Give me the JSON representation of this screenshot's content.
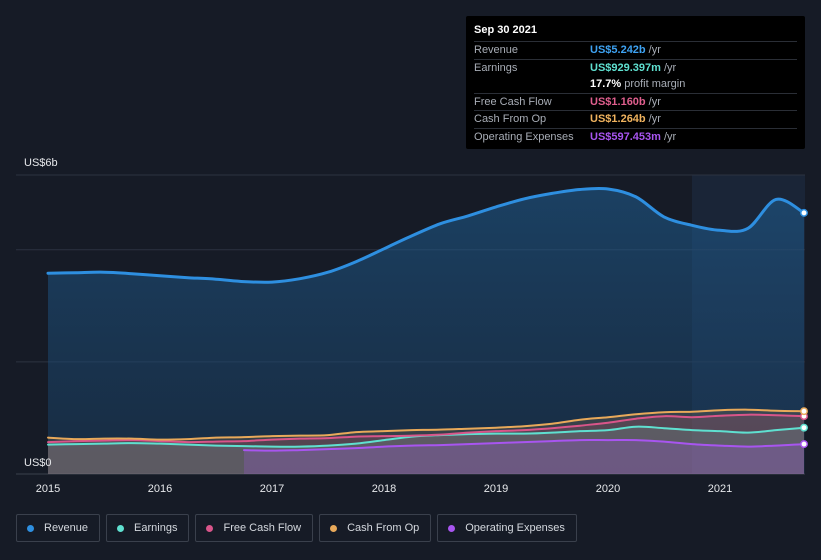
{
  "tooltip": {
    "date": "Sep 30 2021",
    "rows": [
      {
        "label": "Revenue",
        "value": "US$5.242b",
        "unit": "/yr",
        "color": "#3ea2f2"
      },
      {
        "label": "Earnings",
        "value": "US$929.397m",
        "unit": "/yr",
        "color": "#5fe0d0"
      },
      {
        "label": "",
        "value": "17.7%",
        "unit": "profit margin",
        "color": "#ffffff"
      },
      {
        "label": "Free Cash Flow",
        "value": "US$1.160b",
        "unit": "/yr",
        "color": "#e05f8e"
      },
      {
        "label": "Cash From Op",
        "value": "US$1.264b",
        "unit": "/yr",
        "color": "#f0b35e"
      },
      {
        "label": "Operating Expenses",
        "value": "US$597.453m",
        "unit": "/yr",
        "color": "#a855f0"
      }
    ]
  },
  "legend": [
    {
      "label": "Revenue",
      "color": "#2e8fe0"
    },
    {
      "label": "Earnings",
      "color": "#5fe0d0"
    },
    {
      "label": "Free Cash Flow",
      "color": "#d9558a"
    },
    {
      "label": "Cash From Op",
      "color": "#e8a95a"
    },
    {
      "label": "Operating Expenses",
      "color": "#a855f0"
    }
  ],
  "chart_data": {
    "type": "area",
    "y_top_label": "US$6b",
    "y_bottom_label": "US$0",
    "ylim": [
      0,
      6
    ],
    "y_unit": "US$ billions",
    "x_tick_labels": [
      "2015",
      "2016",
      "2017",
      "2018",
      "2019",
      "2020",
      "2021"
    ],
    "x_ticks": [
      2015,
      2016,
      2017,
      2018,
      2019,
      2020,
      2021
    ],
    "xlim": [
      2014.72,
      2021.83
    ],
    "series": [
      {
        "name": "Revenue",
        "color": "#2e8fe0",
        "x": [
          2015.0,
          2015.25,
          2015.5,
          2015.75,
          2016.0,
          2016.25,
          2016.5,
          2016.75,
          2017.0,
          2017.25,
          2017.5,
          2017.75,
          2018.0,
          2018.25,
          2018.5,
          2018.75,
          2019.0,
          2019.25,
          2019.5,
          2019.75,
          2020.0,
          2020.25,
          2020.5,
          2020.75,
          2021.0,
          2021.25,
          2021.5,
          2021.75
        ],
        "values": [
          4.03,
          4.04,
          4.05,
          4.02,
          3.98,
          3.94,
          3.91,
          3.86,
          3.85,
          3.92,
          4.05,
          4.26,
          4.52,
          4.78,
          5.02,
          5.18,
          5.36,
          5.52,
          5.63,
          5.71,
          5.72,
          5.56,
          5.16,
          4.99,
          4.89,
          4.93,
          5.51,
          5.24
        ]
      },
      {
        "name": "Earnings",
        "color": "#5fe0d0",
        "x": [
          2015.0,
          2015.25,
          2015.5,
          2015.75,
          2016.0,
          2016.25,
          2016.5,
          2016.75,
          2017.0,
          2017.25,
          2017.5,
          2017.75,
          2018.0,
          2018.25,
          2018.5,
          2018.75,
          2019.0,
          2019.25,
          2019.5,
          2019.75,
          2020.0,
          2020.25,
          2020.5,
          2020.75,
          2021.0,
          2021.25,
          2021.5,
          2021.75
        ],
        "values": [
          0.59,
          0.6,
          0.61,
          0.62,
          0.61,
          0.59,
          0.57,
          0.56,
          0.55,
          0.55,
          0.57,
          0.61,
          0.68,
          0.75,
          0.78,
          0.8,
          0.81,
          0.81,
          0.83,
          0.86,
          0.88,
          0.95,
          0.92,
          0.88,
          0.86,
          0.83,
          0.88,
          0.93
        ]
      },
      {
        "name": "Free Cash Flow",
        "color": "#d9558a",
        "x": [
          2015.0,
          2015.25,
          2015.5,
          2015.75,
          2016.0,
          2016.25,
          2016.5,
          2016.75,
          2017.0,
          2017.25,
          2017.5,
          2017.75,
          2018.0,
          2018.25,
          2018.5,
          2018.75,
          2019.0,
          2019.25,
          2019.5,
          2019.75,
          2020.0,
          2020.25,
          2020.5,
          2020.75,
          2021.0,
          2021.25,
          2021.5,
          2021.75
        ],
        "values": [
          0.64,
          0.66,
          0.67,
          0.68,
          0.66,
          0.64,
          0.65,
          0.66,
          0.69,
          0.71,
          0.72,
          0.75,
          0.76,
          0.77,
          0.79,
          0.83,
          0.86,
          0.88,
          0.92,
          0.97,
          1.03,
          1.11,
          1.16,
          1.14,
          1.17,
          1.19,
          1.18,
          1.16
        ]
      },
      {
        "name": "Cash From Op",
        "color": "#e8a95a",
        "x": [
          2015.0,
          2015.25,
          2015.5,
          2015.75,
          2016.0,
          2016.25,
          2016.5,
          2016.75,
          2017.0,
          2017.25,
          2017.5,
          2017.75,
          2018.0,
          2018.25,
          2018.5,
          2018.75,
          2019.0,
          2019.25,
          2019.5,
          2019.75,
          2020.0,
          2020.25,
          2020.5,
          2020.75,
          2021.0,
          2021.25,
          2021.5,
          2021.75
        ],
        "values": [
          0.73,
          0.7,
          0.71,
          0.71,
          0.69,
          0.7,
          0.73,
          0.74,
          0.76,
          0.77,
          0.78,
          0.84,
          0.86,
          0.88,
          0.89,
          0.91,
          0.93,
          0.96,
          1.01,
          1.09,
          1.14,
          1.2,
          1.24,
          1.25,
          1.28,
          1.29,
          1.27,
          1.26
        ]
      },
      {
        "name": "Operating Expenses",
        "color": "#a855f0",
        "x": [
          2016.75,
          2017.0,
          2017.25,
          2017.5,
          2017.75,
          2018.0,
          2018.25,
          2018.5,
          2018.75,
          2019.0,
          2019.25,
          2019.5,
          2019.75,
          2020.0,
          2020.25,
          2020.5,
          2020.75,
          2021.0,
          2021.25,
          2021.5,
          2021.75
        ],
        "values": [
          0.48,
          0.47,
          0.48,
          0.5,
          0.52,
          0.55,
          0.57,
          0.58,
          0.6,
          0.62,
          0.64,
          0.66,
          0.68,
          0.68,
          0.68,
          0.65,
          0.6,
          0.57,
          0.55,
          0.57,
          0.6
        ]
      }
    ],
    "shaded_since": 2020.75,
    "grid": true,
    "legend_placement": "bottom"
  }
}
